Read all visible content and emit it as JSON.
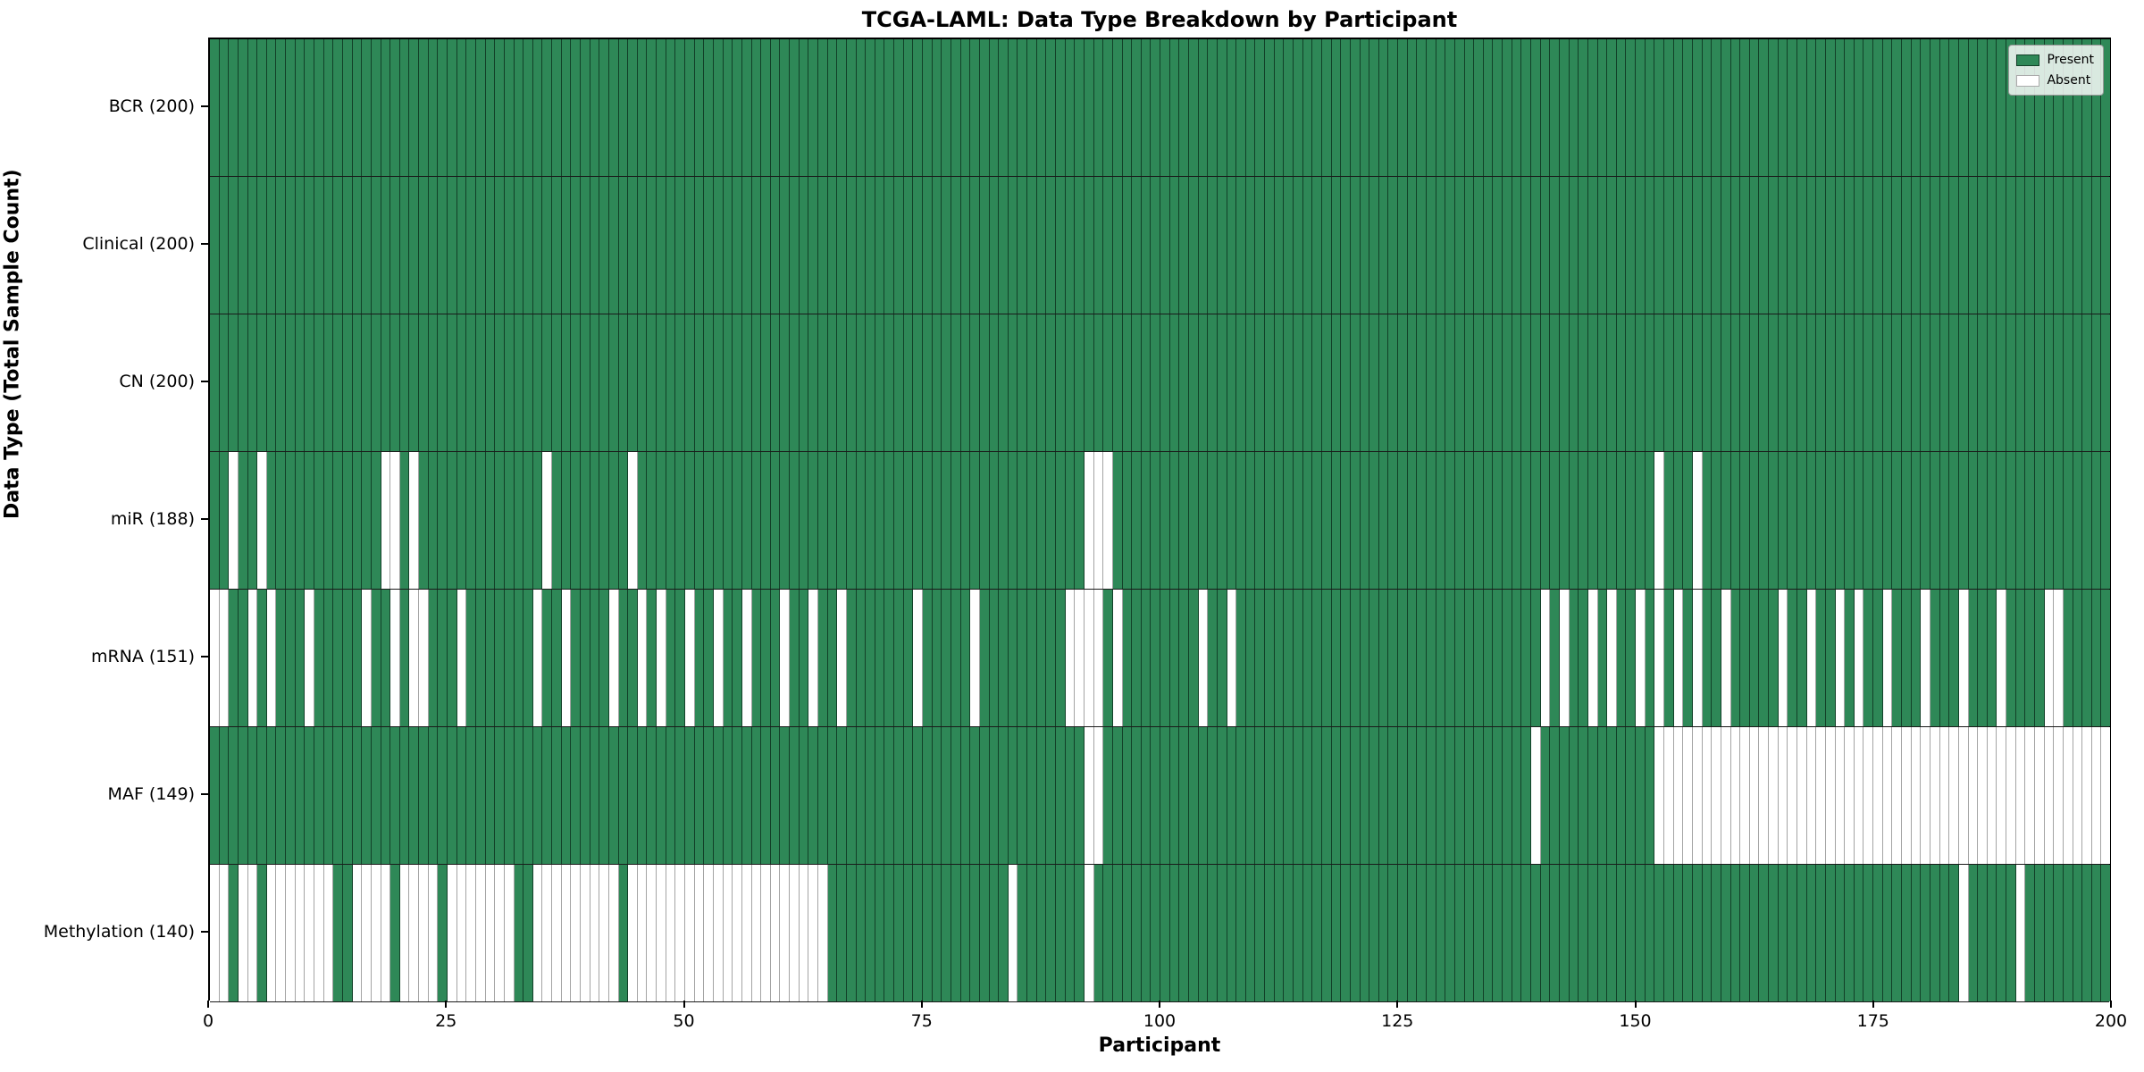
{
  "title": "TCGA-LAML: Data Type Breakdown by Participant",
  "xlabel": "Participant",
  "ylabel": "Data Type (Total Sample Count)",
  "legend": {
    "present_label": "Present",
    "absent_label": "Absent"
  },
  "colors": {
    "present": "#2e8857",
    "absent": "#ffffff",
    "row_divider": "#1a1a1a",
    "plot_border": "#000000"
  },
  "chart_data": {
    "type": "heatmap",
    "description": "Presence/absence matrix: 7 data-type rows x 200 participant columns; green=present, white=absent",
    "n_participants": 200,
    "x_ticks": [
      0,
      25,
      50,
      75,
      100,
      125,
      150,
      175,
      200
    ],
    "xlim": [
      0,
      200
    ],
    "grid": true,
    "legend_position": "upper right",
    "rows": [
      {
        "label": "BCR (200)",
        "name": "BCR",
        "present_count": 200,
        "absent": []
      },
      {
        "label": "Clinical (200)",
        "name": "Clinical",
        "present_count": 200,
        "absent": []
      },
      {
        "label": "CN (200)",
        "name": "CN",
        "present_count": 200,
        "absent": []
      },
      {
        "label": "miR (188)",
        "name": "miR",
        "present_count": 188,
        "absent": [
          2,
          5,
          18,
          19,
          21,
          35,
          44,
          92,
          93,
          94,
          152,
          156
        ]
      },
      {
        "label": "mRNA (151)",
        "name": "mRNA",
        "present_count": 151,
        "absent": [
          0,
          1,
          4,
          6,
          10,
          16,
          19,
          21,
          22,
          26,
          34,
          37,
          42,
          45,
          47,
          50,
          53,
          56,
          60,
          63,
          66,
          74,
          80,
          90,
          91,
          92,
          93,
          95,
          104,
          107,
          140,
          142,
          145,
          147,
          150,
          152,
          154,
          156,
          159,
          165,
          168,
          171,
          173,
          176,
          180,
          184,
          188,
          193,
          194
        ]
      },
      {
        "label": "MAF (149)",
        "name": "MAF",
        "present_count": 149,
        "absent": [
          92,
          93,
          139,
          152,
          153,
          154,
          155,
          156,
          157,
          158,
          159,
          160,
          161,
          162,
          163,
          164,
          165,
          166,
          167,
          168,
          169,
          170,
          171,
          172,
          173,
          174,
          175,
          176,
          177,
          178,
          179,
          180,
          181,
          182,
          183,
          184,
          185,
          186,
          187,
          188,
          189,
          190,
          191,
          192,
          193,
          194,
          195,
          196,
          197,
          198,
          199
        ]
      },
      {
        "label": "Methylation (140)",
        "name": "Methylation",
        "present_count": 140,
        "absent": [
          0,
          1,
          3,
          4,
          6,
          7,
          8,
          9,
          10,
          11,
          12,
          15,
          16,
          17,
          18,
          20,
          21,
          22,
          23,
          25,
          26,
          27,
          28,
          29,
          30,
          31,
          34,
          35,
          36,
          37,
          38,
          39,
          40,
          41,
          42,
          44,
          45,
          46,
          47,
          48,
          49,
          50,
          51,
          52,
          53,
          54,
          55,
          56,
          57,
          58,
          59,
          60,
          61,
          62,
          63,
          64,
          84,
          92,
          184,
          190
        ]
      }
    ]
  }
}
